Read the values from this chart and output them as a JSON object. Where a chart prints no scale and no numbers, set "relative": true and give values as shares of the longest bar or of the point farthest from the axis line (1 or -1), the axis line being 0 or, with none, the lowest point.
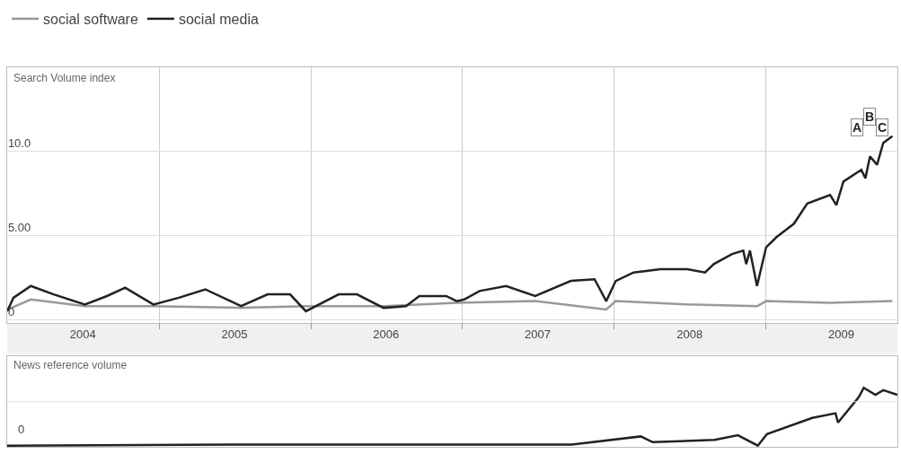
{
  "chart_data": [
    {
      "type": "line",
      "ylabel": "Search Volume index",
      "legend": "top left",
      "grid": true,
      "marker": "none",
      "line_style": "solid",
      "xlim": [
        "2004-01-01",
        "2009-11-13"
      ],
      "ylim": [
        -0.2,
        15
      ],
      "yticks": [
        {
          "value": 0,
          "label": "0"
        },
        {
          "value": 5,
          "label": "5.00"
        },
        {
          "value": 10,
          "label": "10.0"
        }
      ],
      "xticks": [
        {
          "value": "2005-01-01",
          "label": null
        },
        {
          "value": "2006-01-01",
          "label": null
        },
        {
          "value": "2007-01-01",
          "label": null
        },
        {
          "value": "2008-01-01",
          "label": null
        },
        {
          "value": "2009-01-01",
          "label": null
        },
        {
          "value": "2004-07-01",
          "label": "2004"
        },
        {
          "value": "2005-07-01",
          "label": "2005"
        },
        {
          "value": "2006-07-01",
          "label": "2006"
        },
        {
          "value": "2007-07-01",
          "label": "2007"
        },
        {
          "value": "2008-07-01",
          "label": "2008"
        },
        {
          "value": "2009-07-01",
          "label": "2009"
        }
      ],
      "annotations": [
        "A",
        "B",
        "C"
      ],
      "series": [
        {
          "name": "social software",
          "color": "#999999",
          "x": [
            "2004-01-01",
            "2004-02-27",
            "2004-07-06",
            "2004-12-18",
            "2005-07-17",
            "2005-12-20",
            "2006-06-25",
            "2006-12-18",
            "2007-06-25",
            "2007-12-13",
            "2008-01-05",
            "2008-06-25",
            "2008-12-10",
            "2009-01-01",
            "2009-06-04",
            "2009-11-01"
          ],
          "values": [
            0.6,
            1.2,
            0.8,
            0.8,
            0.7,
            0.8,
            0.8,
            1.0,
            1.1,
            0.6,
            1.1,
            0.9,
            0.8,
            1.1,
            1.0,
            1.1
          ]
        },
        {
          "name": "social media",
          "color": "#222222",
          "x": [
            "2004-01-01",
            "2004-01-16",
            "2004-02-27",
            "2004-04-22",
            "2004-07-06",
            "2004-08-28",
            "2004-10-11",
            "2004-12-18",
            "2005-02-17",
            "2005-04-22",
            "2005-07-17",
            "2005-09-19",
            "2005-11-12",
            "2005-12-20",
            "2006-03-09",
            "2006-04-22",
            "2006-06-25",
            "2006-08-18",
            "2006-09-19",
            "2006-11-23",
            "2006-12-18",
            "2007-01-05",
            "2007-02-11",
            "2007-04-16",
            "2007-06-25",
            "2007-09-19",
            "2007-11-15",
            "2007-12-13",
            "2008-01-05",
            "2008-02-17",
            "2008-04-22",
            "2008-06-25",
            "2008-08-07",
            "2008-08-28",
            "2008-10-11",
            "2008-11-07",
            "2008-11-14",
            "2008-11-23",
            "2008-12-10",
            "2009-01-01",
            "2009-01-26",
            "2009-03-09",
            "2009-04-10",
            "2009-06-04",
            "2009-06-19",
            "2009-07-06",
            "2009-08-18",
            "2009-08-28",
            "2009-09-08",
            "2009-09-25",
            "2009-10-10",
            "2009-11-01"
          ],
          "values": [
            0.5,
            1.3,
            2.0,
            1.5,
            0.9,
            1.4,
            1.9,
            0.9,
            1.3,
            1.8,
            0.8,
            1.5,
            1.5,
            0.5,
            1.5,
            1.5,
            0.7,
            0.8,
            1.4,
            1.4,
            1.1,
            1.2,
            1.7,
            2.0,
            1.4,
            2.3,
            2.4,
            1.1,
            2.3,
            2.8,
            3.0,
            3.0,
            2.8,
            3.3,
            3.9,
            4.1,
            3.3,
            4.1,
            2.0,
            4.3,
            4.9,
            5.7,
            6.9,
            7.4,
            6.8,
            8.2,
            8.9,
            8.4,
            9.7,
            9.2,
            10.5,
            10.9
          ]
        }
      ]
    },
    {
      "type": "line",
      "ylabel": "News reference volume",
      "relative": true,
      "ref_lines": [
        {
          "axis": "y",
          "value": 0.76,
          "color": "#dddddd"
        }
      ],
      "marker": "none",
      "line_style": "solid",
      "xlim": [
        "2004-01-01",
        "2009-11-13"
      ],
      "annotations": [
        "0"
      ],
      "series": [
        {
          "color": "#222222",
          "x": [
            "2004-01-01",
            "2005-07-01",
            "2006-07-01",
            "2007-06-01",
            "2007-09-21",
            "2008-03-05",
            "2008-04-03",
            "2008-08-30",
            "2008-10-25",
            "2008-12-12",
            "2009-01-03",
            "2009-04-22",
            "2009-06-17",
            "2009-06-23",
            "2009-08-12",
            "2009-08-24",
            "2009-09-21",
            "2009-10-10",
            "2009-11-13"
          ],
          "values": [
            0.0,
            0.02,
            0.02,
            0.02,
            0.02,
            0.16,
            0.06,
            0.1,
            0.18,
            0.0,
            0.2,
            0.48,
            0.56,
            0.4,
            0.84,
            1.0,
            0.88,
            0.96,
            0.88
          ]
        }
      ]
    }
  ]
}
